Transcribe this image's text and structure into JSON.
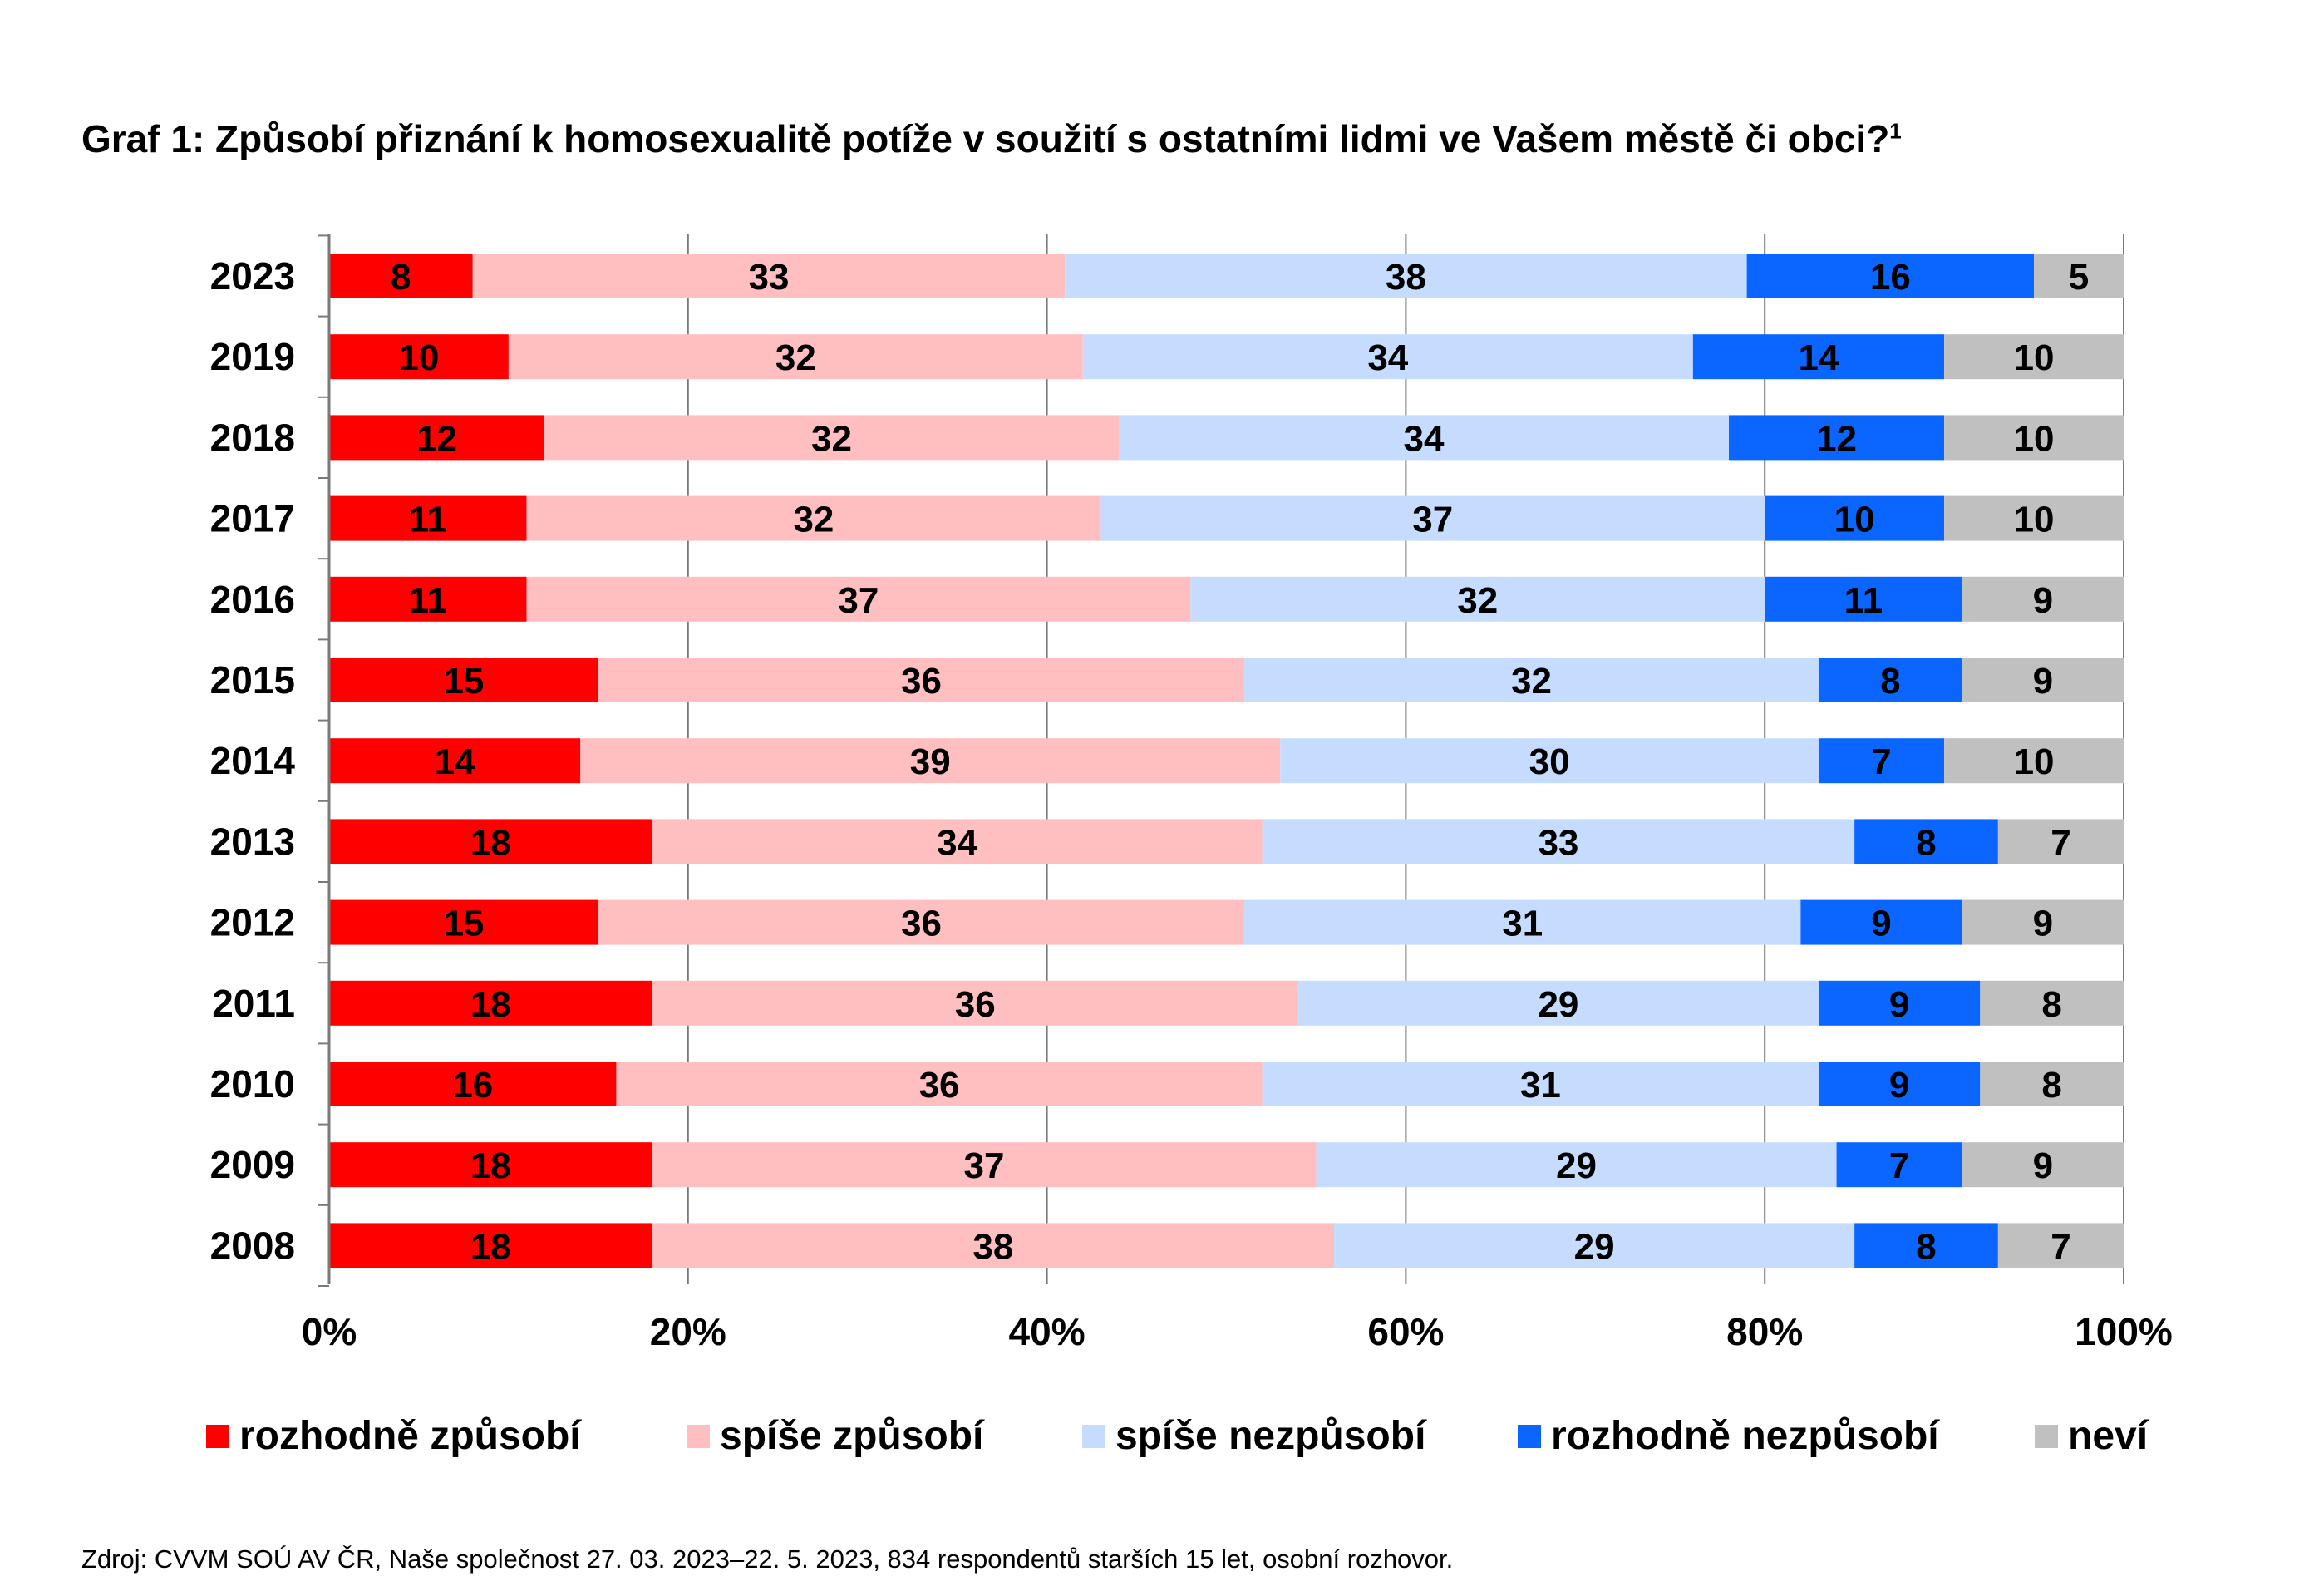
{
  "title": "Graf 1: Způsobí přiznání k homosexualitě potíže v soužití s ostatními lidmi ve Vašem městě či obci?",
  "title_footnote": "1",
  "source": "Zdroj: CVVM SOÚ AV ČR, Naše společnost 27. 03. 2023–22. 5. 2023, 834 respondentů starších 15 let, osobní rozhovor.",
  "chart_data": {
    "type": "bar",
    "orientation": "horizontal",
    "stacked": true,
    "categories": [
      "2023",
      "2019",
      "2018",
      "2017",
      "2016",
      "2015",
      "2014",
      "2013",
      "2012",
      "2011",
      "2010",
      "2009",
      "2008"
    ],
    "x_ticks": [
      "0%",
      "20%",
      "40%",
      "60%",
      "80%",
      "100%"
    ],
    "xlim": [
      0,
      100
    ],
    "grid": "vertical",
    "legend_position": "bottom",
    "series": [
      {
        "name": "rozhodně způsobí",
        "color": "#ff0000",
        "values": [
          8,
          10,
          12,
          11,
          11,
          15,
          14,
          18,
          15,
          18,
          16,
          18,
          18
        ]
      },
      {
        "name": "spíše způsobí",
        "color": "#ffbfc0",
        "values": [
          33,
          32,
          32,
          32,
          37,
          36,
          39,
          34,
          36,
          36,
          36,
          37,
          38
        ]
      },
      {
        "name": "spíše nezpůsobí",
        "color": "#c5dcff",
        "values": [
          38,
          34,
          34,
          37,
          32,
          32,
          30,
          33,
          31,
          29,
          31,
          29,
          29
        ]
      },
      {
        "name": "rozhodně nezpůsobí",
        "color": "#0a66ff",
        "values": [
          16,
          14,
          12,
          10,
          11,
          8,
          7,
          8,
          9,
          9,
          9,
          7,
          8
        ]
      },
      {
        "name": "neví",
        "color": "#c0c0c0",
        "values": [
          5,
          10,
          10,
          10,
          9,
          9,
          10,
          7,
          9,
          8,
          8,
          9,
          7
        ]
      }
    ]
  }
}
